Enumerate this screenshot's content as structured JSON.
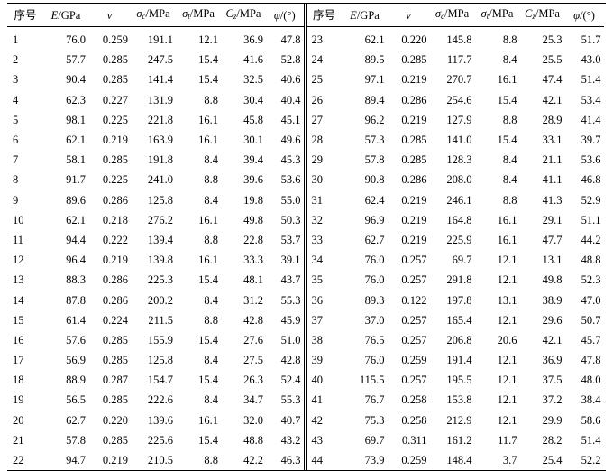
{
  "columns": [
    {
      "base": "序号",
      "sym": "",
      "sub": "",
      "unit": ""
    },
    {
      "base": "",
      "sym": "E",
      "sub": "",
      "unit": "/GPa"
    },
    {
      "base": "",
      "sym": "ν",
      "sub": "",
      "unit": ""
    },
    {
      "base": "",
      "sym": "σ",
      "sub": "c",
      "unit": "/MPa"
    },
    {
      "base": "",
      "sym": "σ",
      "sub": "t",
      "unit": "/MPa"
    },
    {
      "base": "",
      "sym": "C",
      "sub": "z",
      "unit": "/MPa"
    },
    {
      "base": "",
      "sym": "φ",
      "sub": "",
      "unit": "/(°)"
    }
  ],
  "rows_left": [
    [
      "1",
      "76.0",
      "0.259",
      "191.1",
      "12.1",
      "36.9",
      "47.8"
    ],
    [
      "2",
      "57.7",
      "0.285",
      "247.5",
      "15.4",
      "41.6",
      "52.8"
    ],
    [
      "3",
      "90.4",
      "0.285",
      "141.4",
      "15.4",
      "32.5",
      "40.6"
    ],
    [
      "4",
      "62.3",
      "0.227",
      "131.9",
      "8.8",
      "30.4",
      "40.4"
    ],
    [
      "5",
      "98.1",
      "0.225",
      "221.8",
      "16.1",
      "45.8",
      "45.1"
    ],
    [
      "6",
      "62.1",
      "0.219",
      "163.9",
      "16.1",
      "30.1",
      "49.6"
    ],
    [
      "7",
      "58.1",
      "0.285",
      "191.8",
      "8.4",
      "39.4",
      "45.3"
    ],
    [
      "8",
      "91.7",
      "0.225",
      "241.0",
      "8.8",
      "39.6",
      "53.6"
    ],
    [
      "9",
      "89.6",
      "0.286",
      "125.8",
      "8.4",
      "19.8",
      "55.0"
    ],
    [
      "10",
      "62.1",
      "0.218",
      "276.2",
      "16.1",
      "49.8",
      "50.3"
    ],
    [
      "11",
      "94.4",
      "0.222",
      "139.4",
      "8.8",
      "22.8",
      "53.7"
    ],
    [
      "12",
      "96.4",
      "0.219",
      "139.8",
      "16.1",
      "33.3",
      "39.1"
    ],
    [
      "13",
      "88.3",
      "0.286",
      "225.3",
      "15.4",
      "48.1",
      "43.7"
    ],
    [
      "14",
      "87.8",
      "0.286",
      "200.2",
      "8.4",
      "31.2",
      "55.3"
    ],
    [
      "15",
      "61.4",
      "0.224",
      "211.5",
      "8.8",
      "42.8",
      "45.9"
    ],
    [
      "16",
      "57.6",
      "0.285",
      "155.9",
      "15.4",
      "27.6",
      "51.0"
    ],
    [
      "17",
      "56.9",
      "0.285",
      "125.8",
      "8.4",
      "27.5",
      "42.8"
    ],
    [
      "18",
      "88.9",
      "0.287",
      "154.7",
      "15.4",
      "26.3",
      "52.4"
    ],
    [
      "19",
      "56.5",
      "0.285",
      "222.6",
      "8.4",
      "34.7",
      "55.3"
    ],
    [
      "20",
      "62.7",
      "0.220",
      "139.6",
      "16.1",
      "32.0",
      "40.7"
    ],
    [
      "21",
      "57.8",
      "0.285",
      "225.6",
      "15.4",
      "48.8",
      "43.2"
    ],
    [
      "22",
      "94.7",
      "0.219",
      "210.5",
      "8.8",
      "42.2",
      "46.3"
    ]
  ],
  "rows_right": [
    [
      "23",
      "62.1",
      "0.220",
      "145.8",
      "8.8",
      "25.3",
      "51.7"
    ],
    [
      "24",
      "89.5",
      "0.285",
      "117.7",
      "8.4",
      "25.5",
      "43.0"
    ],
    [
      "25",
      "97.1",
      "0.219",
      "270.7",
      "16.1",
      "47.4",
      "51.4"
    ],
    [
      "26",
      "89.4",
      "0.286",
      "254.6",
      "15.4",
      "42.1",
      "53.4"
    ],
    [
      "27",
      "96.2",
      "0.219",
      "127.9",
      "8.8",
      "28.9",
      "41.4"
    ],
    [
      "28",
      "57.3",
      "0.285",
      "141.0",
      "15.4",
      "33.1",
      "39.7"
    ],
    [
      "29",
      "57.8",
      "0.285",
      "128.3",
      "8.4",
      "21.1",
      "53.6"
    ],
    [
      "30",
      "90.8",
      "0.286",
      "208.0",
      "8.4",
      "41.1",
      "46.8"
    ],
    [
      "31",
      "62.4",
      "0.219",
      "246.1",
      "8.8",
      "41.3",
      "52.9"
    ],
    [
      "32",
      "96.9",
      "0.219",
      "164.8",
      "16.1",
      "29.1",
      "51.1"
    ],
    [
      "33",
      "62.7",
      "0.219",
      "225.9",
      "16.1",
      "47.7",
      "44.2"
    ],
    [
      "34",
      "76.0",
      "0.257",
      "69.7",
      "12.1",
      "13.1",
      "48.8"
    ],
    [
      "35",
      "76.0",
      "0.257",
      "291.8",
      "12.1",
      "49.8",
      "52.3"
    ],
    [
      "36",
      "89.3",
      "0.122",
      "197.8",
      "13.1",
      "38.9",
      "47.0"
    ],
    [
      "37",
      "37.0",
      "0.257",
      "165.4",
      "12.1",
      "29.6",
      "50.7"
    ],
    [
      "38",
      "76.5",
      "0.257",
      "206.8",
      "20.6",
      "42.1",
      "45.7"
    ],
    [
      "39",
      "76.0",
      "0.259",
      "191.4",
      "12.1",
      "36.9",
      "47.8"
    ],
    [
      "40",
      "115.5",
      "0.257",
      "195.5",
      "12.1",
      "37.5",
      "48.0"
    ],
    [
      "41",
      "76.7",
      "0.258",
      "153.8",
      "12.1",
      "37.2",
      "38.4"
    ],
    [
      "42",
      "75.3",
      "0.258",
      "212.9",
      "12.1",
      "29.9",
      "58.6"
    ],
    [
      "43",
      "69.7",
      "0.311",
      "161.2",
      "11.7",
      "28.2",
      "51.4"
    ],
    [
      "44",
      "73.9",
      "0.259",
      "148.4",
      "3.7",
      "25.4",
      "52.2"
    ]
  ]
}
